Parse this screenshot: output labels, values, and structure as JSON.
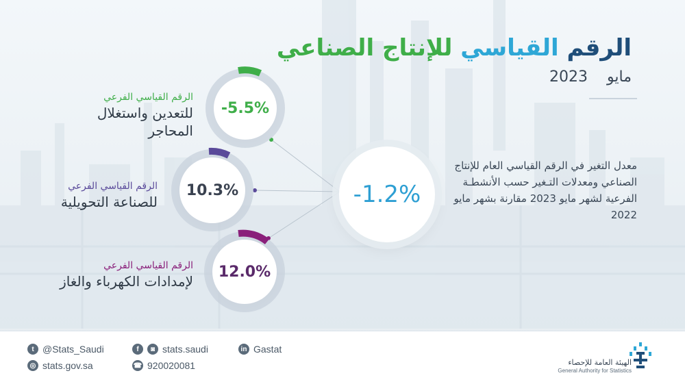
{
  "title": {
    "part1": "الرقم ",
    "part2": "القياسي ",
    "part3": "للإنتاج الصناعي"
  },
  "date": {
    "month": "مايو",
    "year": "2023"
  },
  "center": {
    "value": "-1.2%",
    "color": "#2e9fd3"
  },
  "description": "معدل التغير في الرقم القياسي العام للإنتاج الصناعي ومعدلات التـغير حسب الأنشطـة الفرعية لشهر مايو 2023 مقارنة بشهر مايو 2022",
  "indices": [
    {
      "sub_label": "الرقم القياسي الفرعي",
      "main_label_1": "للتعدين واستغلال",
      "main_label_2": "المحاجر",
      "value": "-5.5%",
      "color": "#3fae49",
      "fraction": 0.1
    },
    {
      "sub_label": "الرقم القياسي الفرعي",
      "main_label_1": "للصناعة التحويلية",
      "main_label_2": "",
      "value": "10.3%",
      "color": "#5a4a9a",
      "fraction": 0.1
    },
    {
      "sub_label": "الرقم القياسي الفرعي",
      "main_label_1": "لإمدادات الكهرباء والغاز",
      "main_label_2": "",
      "value": "12.0%",
      "color": "#8a1f7a",
      "fraction": 0.12
    }
  ],
  "footer": {
    "twitter": "@Stats_Saudi",
    "website": "stats.gov.sa",
    "facebook_instagram": "stats.saudi",
    "phone": "920020081",
    "linkedin": "Gastat",
    "org_ar": "الهيئة العامة للإحصاء",
    "org_en": "General Authority for Statistics"
  },
  "colors": {
    "accent_blue": "#2ea7d6",
    "accent_green": "#3fae49",
    "navy": "#1f4e79"
  }
}
